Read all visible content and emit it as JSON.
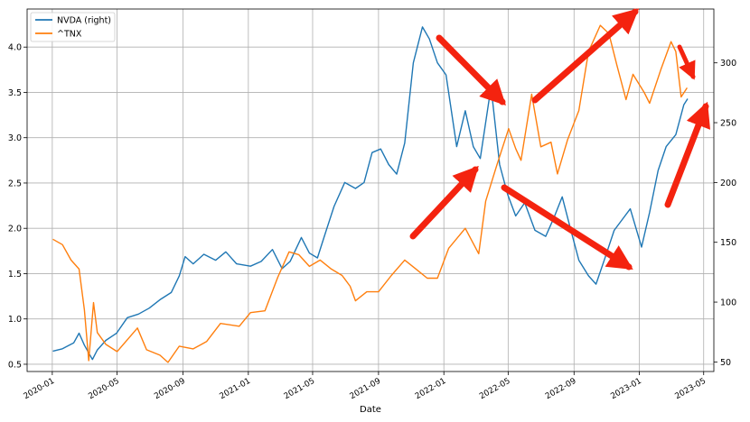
{
  "chart_data": {
    "type": "line",
    "title": "",
    "xlabel": "Date",
    "ylabel_left": "",
    "ylabel_right": "",
    "x_ticks": [
      "2020-01",
      "2020-05",
      "2020-09",
      "2021-01",
      "2021-05",
      "2021-09",
      "2022-01",
      "2022-05",
      "2022-09",
      "2023-01",
      "2023-05"
    ],
    "x_range": [
      "2019-11-15",
      "2023-05-20"
    ],
    "y_left_ticks": [
      0.5,
      1.0,
      1.5,
      2.0,
      2.5,
      3.0,
      3.5,
      4.0
    ],
    "y_left_range": [
      0.42,
      4.42
    ],
    "y_right_ticks": [
      50,
      100,
      150,
      200,
      250,
      300
    ],
    "y_right_range": [
      42,
      345
    ],
    "grid": true,
    "legend_position": "top-left",
    "series": [
      {
        "name": "NVDA (right)",
        "axis": "right",
        "color": "#1f77b4",
        "points": [
          [
            "2020-01-02",
            59
          ],
          [
            "2020-01-20",
            61
          ],
          [
            "2020-02-10",
            66
          ],
          [
            "2020-02-20",
            74
          ],
          [
            "2020-03-01",
            64
          ],
          [
            "2020-03-16",
            52
          ],
          [
            "2020-03-25",
            60
          ],
          [
            "2020-04-10",
            68
          ],
          [
            "2020-04-30",
            74
          ],
          [
            "2020-05-20",
            87
          ],
          [
            "2020-06-10",
            90
          ],
          [
            "2020-06-30",
            95
          ],
          [
            "2020-07-20",
            102
          ],
          [
            "2020-08-10",
            108
          ],
          [
            "2020-08-25",
            122
          ],
          [
            "2020-09-05",
            138
          ],
          [
            "2020-09-20",
            132
          ],
          [
            "2020-10-10",
            140
          ],
          [
            "2020-11-01",
            135
          ],
          [
            "2020-11-20",
            142
          ],
          [
            "2020-12-10",
            132
          ],
          [
            "2021-01-05",
            130
          ],
          [
            "2021-01-25",
            134
          ],
          [
            "2021-02-15",
            144
          ],
          [
            "2021-03-05",
            128
          ],
          [
            "2021-03-20",
            134
          ],
          [
            "2021-04-10",
            154
          ],
          [
            "2021-04-25",
            141
          ],
          [
            "2021-05-10",
            137
          ],
          [
            "2021-05-25",
            158
          ],
          [
            "2021-06-10",
            180
          ],
          [
            "2021-06-30",
            200
          ],
          [
            "2021-07-20",
            195
          ],
          [
            "2021-08-05",
            200
          ],
          [
            "2021-08-20",
            225
          ],
          [
            "2021-09-05",
            228
          ],
          [
            "2021-09-20",
            215
          ],
          [
            "2021-10-05",
            207
          ],
          [
            "2021-10-20",
            233
          ],
          [
            "2021-11-05",
            300
          ],
          [
            "2021-11-22",
            330
          ],
          [
            "2021-12-05",
            320
          ],
          [
            "2021-12-20",
            300
          ],
          [
            "2022-01-05",
            290
          ],
          [
            "2022-01-25",
            230
          ],
          [
            "2022-02-10",
            260
          ],
          [
            "2022-02-25",
            230
          ],
          [
            "2022-03-10",
            220
          ],
          [
            "2022-03-30",
            280
          ],
          [
            "2022-04-15",
            215
          ],
          [
            "2022-04-30",
            190
          ],
          [
            "2022-05-15",
            172
          ],
          [
            "2022-06-01",
            183
          ],
          [
            "2022-06-20",
            160
          ],
          [
            "2022-07-10",
            155
          ],
          [
            "2022-07-25",
            170
          ],
          [
            "2022-08-10",
            188
          ],
          [
            "2022-08-25",
            162
          ],
          [
            "2022-09-10",
            135
          ],
          [
            "2022-09-28",
            122
          ],
          [
            "2022-10-12",
            115
          ],
          [
            "2022-10-28",
            136
          ],
          [
            "2022-11-15",
            160
          ],
          [
            "2022-11-30",
            169
          ],
          [
            "2022-12-15",
            178
          ],
          [
            "2023-01-05",
            146
          ],
          [
            "2023-01-20",
            175
          ],
          [
            "2023-02-05",
            210
          ],
          [
            "2023-02-20",
            230
          ],
          [
            "2023-03-10",
            240
          ],
          [
            "2023-03-25",
            265
          ],
          [
            "2023-04-01",
            270
          ]
        ]
      },
      {
        "name": "^TNX",
        "axis": "left",
        "color": "#ff7f0e",
        "points": [
          [
            "2020-01-02",
            1.88
          ],
          [
            "2020-01-20",
            1.82
          ],
          [
            "2020-02-05",
            1.65
          ],
          [
            "2020-02-20",
            1.55
          ],
          [
            "2020-03-01",
            1.1
          ],
          [
            "2020-03-09",
            0.54
          ],
          [
            "2020-03-18",
            1.18
          ],
          [
            "2020-03-25",
            0.85
          ],
          [
            "2020-04-10",
            0.72
          ],
          [
            "2020-05-01",
            0.64
          ],
          [
            "2020-06-08",
            0.9
          ],
          [
            "2020-06-25",
            0.66
          ],
          [
            "2020-07-20",
            0.6
          ],
          [
            "2020-08-04",
            0.52
          ],
          [
            "2020-08-25",
            0.7
          ],
          [
            "2020-09-20",
            0.67
          ],
          [
            "2020-10-15",
            0.75
          ],
          [
            "2020-11-10",
            0.95
          ],
          [
            "2020-12-15",
            0.92
          ],
          [
            "2021-01-05",
            1.07
          ],
          [
            "2021-02-01",
            1.09
          ],
          [
            "2021-02-25",
            1.46
          ],
          [
            "2021-03-18",
            1.74
          ],
          [
            "2021-04-05",
            1.71
          ],
          [
            "2021-04-25",
            1.58
          ],
          [
            "2021-05-15",
            1.65
          ],
          [
            "2021-06-05",
            1.55
          ],
          [
            "2021-06-25",
            1.48
          ],
          [
            "2021-07-10",
            1.36
          ],
          [
            "2021-07-20",
            1.2
          ],
          [
            "2021-08-10",
            1.3
          ],
          [
            "2021-09-01",
            1.3
          ],
          [
            "2021-09-25",
            1.48
          ],
          [
            "2021-10-20",
            1.65
          ],
          [
            "2021-11-10",
            1.55
          ],
          [
            "2021-12-01",
            1.45
          ],
          [
            "2021-12-20",
            1.45
          ],
          [
            "2022-01-10",
            1.78
          ],
          [
            "2022-02-10",
            2.0
          ],
          [
            "2022-03-07",
            1.72
          ],
          [
            "2022-03-20",
            2.3
          ],
          [
            "2022-04-10",
            2.7
          ],
          [
            "2022-05-02",
            3.1
          ],
          [
            "2022-05-15",
            2.88
          ],
          [
            "2022-05-25",
            2.75
          ],
          [
            "2022-06-14",
            3.48
          ],
          [
            "2022-07-01",
            2.9
          ],
          [
            "2022-07-20",
            2.95
          ],
          [
            "2022-08-01",
            2.6
          ],
          [
            "2022-08-20",
            2.98
          ],
          [
            "2022-09-10",
            3.3
          ],
          [
            "2022-09-28",
            3.95
          ],
          [
            "2022-10-20",
            4.24
          ],
          [
            "2022-11-05",
            4.15
          ],
          [
            "2022-11-20",
            3.8
          ],
          [
            "2022-12-07",
            3.42
          ],
          [
            "2022-12-20",
            3.7
          ],
          [
            "2023-01-10",
            3.5
          ],
          [
            "2023-01-20",
            3.38
          ],
          [
            "2023-02-10",
            3.75
          ],
          [
            "2023-03-01",
            4.06
          ],
          [
            "2023-03-10",
            3.95
          ],
          [
            "2023-03-20",
            3.45
          ],
          [
            "2023-03-31",
            3.55
          ]
        ]
      }
    ]
  }
}
